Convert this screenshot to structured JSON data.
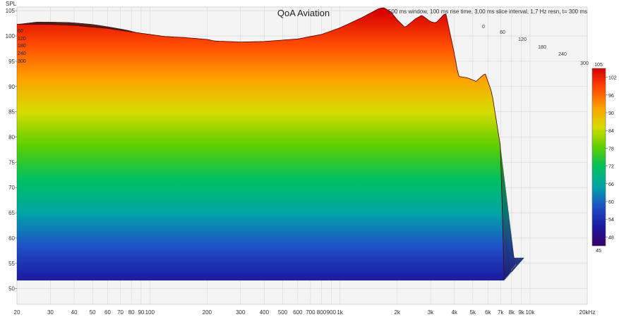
{
  "chart_data": {
    "type": "waterfall",
    "title": "QoA Aviation",
    "subtitle": "500 ms window, 100 ms rise time, 3,00 ms slice interval, 1,7 Hz resn, t= 300 ms",
    "ylabel": "SPL",
    "xlabel": "",
    "x_unit_label": "20kHz",
    "x_scale": "log",
    "xlim": [
      20,
      20000
    ],
    "ylim": [
      48,
      106
    ],
    "x_ticks": [
      {
        "v": 20,
        "label": "20"
      },
      {
        "v": 30,
        "label": "30"
      },
      {
        "v": 40,
        "label": "40"
      },
      {
        "v": 50,
        "label": "50"
      },
      {
        "v": 60,
        "label": "60"
      },
      {
        "v": 70,
        "label": "70"
      },
      {
        "v": 80,
        "label": "80"
      },
      {
        "v": 90,
        "label": "90"
      },
      {
        "v": 100,
        "label": "100"
      },
      {
        "v": 200,
        "label": "200"
      },
      {
        "v": 300,
        "label": "300"
      },
      {
        "v": 400,
        "label": "400"
      },
      {
        "v": 500,
        "label": "500"
      },
      {
        "v": 600,
        "label": "600"
      },
      {
        "v": 700,
        "label": "700"
      },
      {
        "v": 800,
        "label": "800"
      },
      {
        "v": 900,
        "label": "900"
      },
      {
        "v": 1000,
        "label": "1k"
      },
      {
        "v": 2000,
        "label": "2k"
      },
      {
        "v": 3000,
        "label": "3k"
      },
      {
        "v": 4000,
        "label": "4k"
      },
      {
        "v": 5000,
        "label": "5k"
      },
      {
        "v": 6000,
        "label": "6k"
      },
      {
        "v": 7000,
        "label": "7k"
      },
      {
        "v": 8000,
        "label": "8k"
      },
      {
        "v": 9000,
        "label": "9k"
      },
      {
        "v": 10000,
        "label": "10k"
      },
      {
        "v": 20000,
        "label": "20kHz"
      }
    ],
    "y_ticks": [
      50,
      55,
      60,
      65,
      70,
      75,
      80,
      85,
      90,
      95,
      100,
      105
    ],
    "time_axis": {
      "unit": "ms",
      "ticks": [
        0,
        60,
        120,
        180,
        240,
        300
      ]
    },
    "colorbar": {
      "range": [
        45,
        105
      ],
      "ticks": [
        48,
        54,
        60,
        66,
        72,
        78,
        84,
        90,
        96,
        102
      ],
      "top_label": "105",
      "bottom_label": "45",
      "colors": [
        "#3a0068",
        "#1a1aa0",
        "#1f50c8",
        "#00a5a5",
        "#00c060",
        "#5ecf00",
        "#d7dc00",
        "#ffa000",
        "#ff4a00",
        "#d40000"
      ]
    },
    "series": [
      {
        "slice_ms": 0,
        "freq": [
          20,
          30,
          40,
          60,
          80,
          100,
          120,
          150,
          175,
          200,
          220,
          300,
          400,
          600,
          800,
          1000,
          1300,
          1600,
          1700,
          1850,
          2000,
          2200,
          2500,
          2700,
          3000,
          3200,
          3600,
          4000,
          4200,
          4700,
          5200,
          5800,
          6300,
          7000,
          7300
        ],
        "spl": [
          102.3,
          102.3,
          102.1,
          101.5,
          100.8,
          100.3,
          99.9,
          99.7,
          99.5,
          99.3,
          99.0,
          98.8,
          98.9,
          99.4,
          100.3,
          101.6,
          103.6,
          105.4,
          105.6,
          104.8,
          103.2,
          101.7,
          103.4,
          104.1,
          102.8,
          102.6,
          104.6,
          96.5,
          92.0,
          91.7,
          91.0,
          92.6,
          88.8,
          78.0,
          52.5
        ]
      }
    ]
  }
}
